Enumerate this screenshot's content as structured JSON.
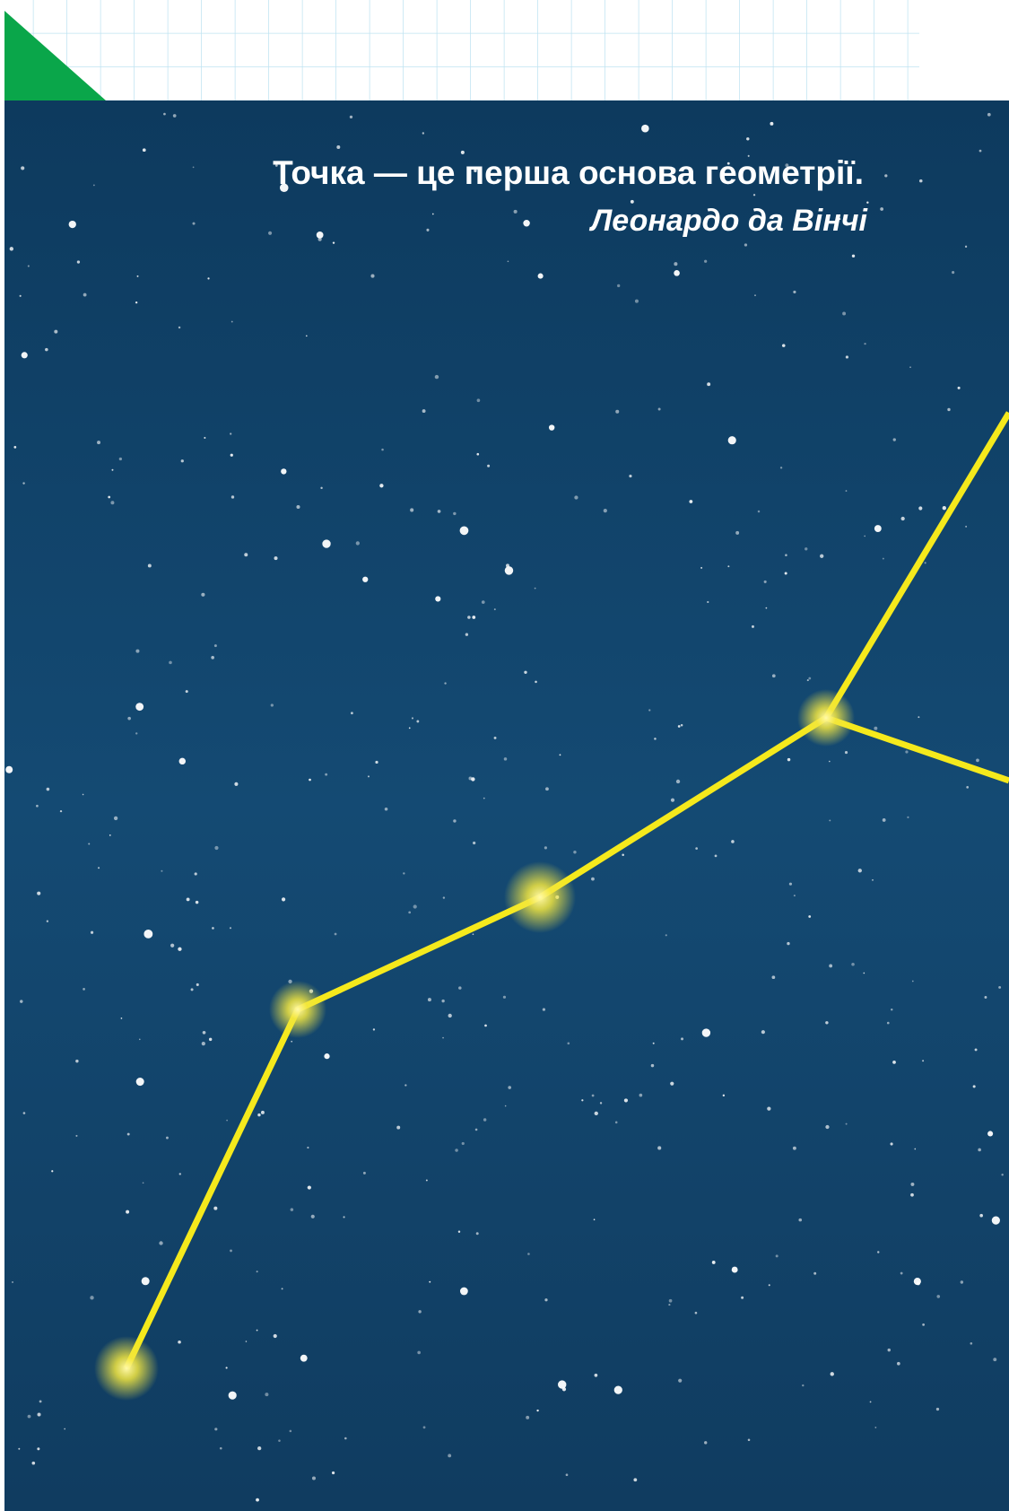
{
  "quote": {
    "text": "Точка — це перша основа геометрії.",
    "author": "Леонардо да Вінчі"
  }
}
